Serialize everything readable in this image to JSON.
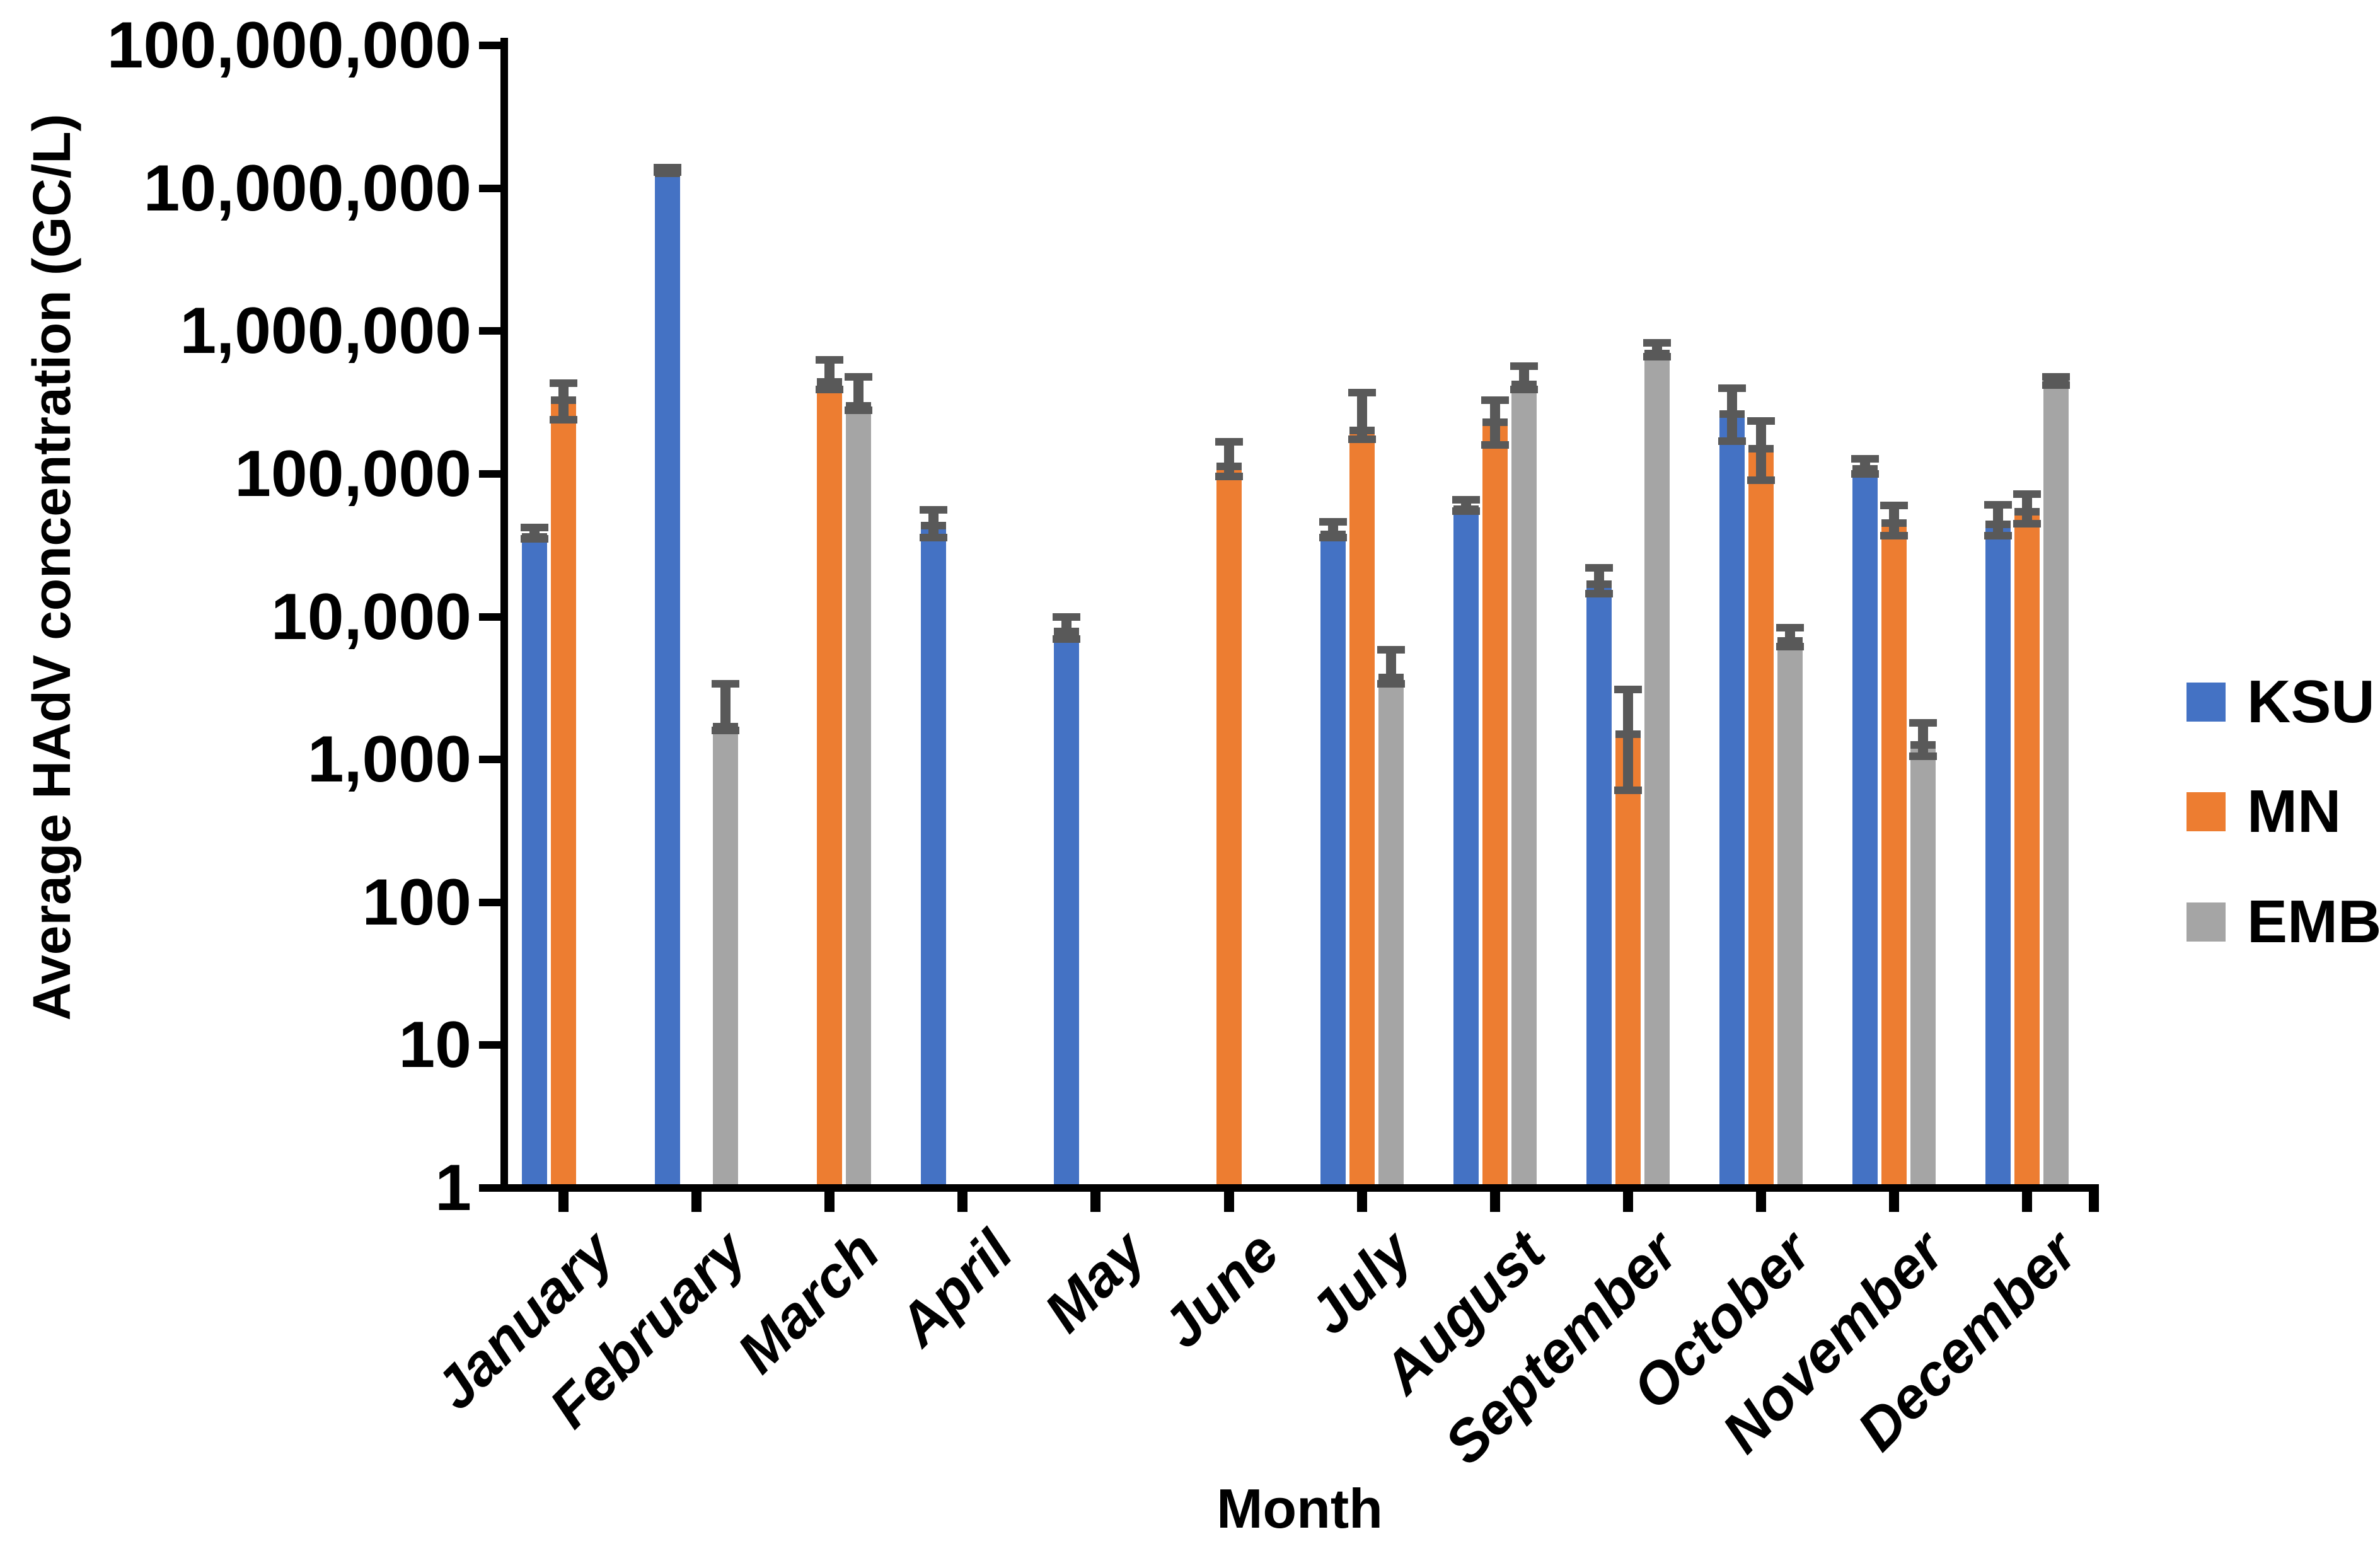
{
  "chart_data": {
    "type": "bar",
    "title": "",
    "xlabel": "Month",
    "ylabel": "Average HAdV concentration (GC/L)",
    "y_scale": "log10",
    "ylim": [
      1,
      100000000
    ],
    "grid": false,
    "legend_position": "right",
    "y_tick_labels": [
      "100,000,000",
      "10,000,000",
      "1,000,000",
      "100,000",
      "10,000",
      "1,000",
      "100",
      "10",
      "1"
    ],
    "categories": [
      "January",
      "February",
      "March",
      "April",
      "May",
      "June",
      "July",
      "August",
      "September",
      "October",
      "November",
      "December"
    ],
    "error_bar_color": "#595959",
    "axis_color": "#000000",
    "series": [
      {
        "name": "KSU",
        "color": "#4472C4",
        "values": [
          38500,
          13500000,
          null,
          46000,
          8400,
          null,
          40000,
          60000,
          18000,
          280000,
          115000,
          47000
        ],
        "err_low": [
          35000,
          13000000,
          null,
          36000,
          7000,
          null,
          36000,
          55000,
          14500,
          170000,
          100000,
          37000
        ],
        "err_high": [
          42000,
          14000000,
          null,
          56000,
          10000,
          null,
          46000,
          66000,
          22000,
          400000,
          128000,
          61000
        ]
      },
      {
        "name": "MN",
        "color": "#ED7D31",
        "values": [
          350000,
          null,
          470000,
          null,
          null,
          120000,
          215000,
          245000,
          1600,
          160000,
          48000,
          58000
        ],
        "err_low": [
          240000,
          null,
          390000,
          null,
          null,
          96000,
          175000,
          160000,
          610,
          90000,
          37000,
          45000
        ],
        "err_high": [
          430000,
          null,
          630000,
          null,
          null,
          168000,
          370000,
          330000,
          3100,
          235000,
          60000,
          72000
        ]
      },
      {
        "name": "EMB",
        "color": "#A5A5A5",
        "values": [
          null,
          1800,
          320000,
          null,
          null,
          null,
          4000,
          450000,
          740000,
          7200,
          1350,
          460000
        ],
        "err_low": [
          null,
          1600,
          280000,
          null,
          null,
          null,
          3400,
          390000,
          660000,
          6200,
          1050,
          420000
        ],
        "err_high": [
          null,
          3400,
          480000,
          null,
          null,
          null,
          5900,
          570000,
          830000,
          8400,
          1800,
          480000
        ]
      }
    ]
  }
}
